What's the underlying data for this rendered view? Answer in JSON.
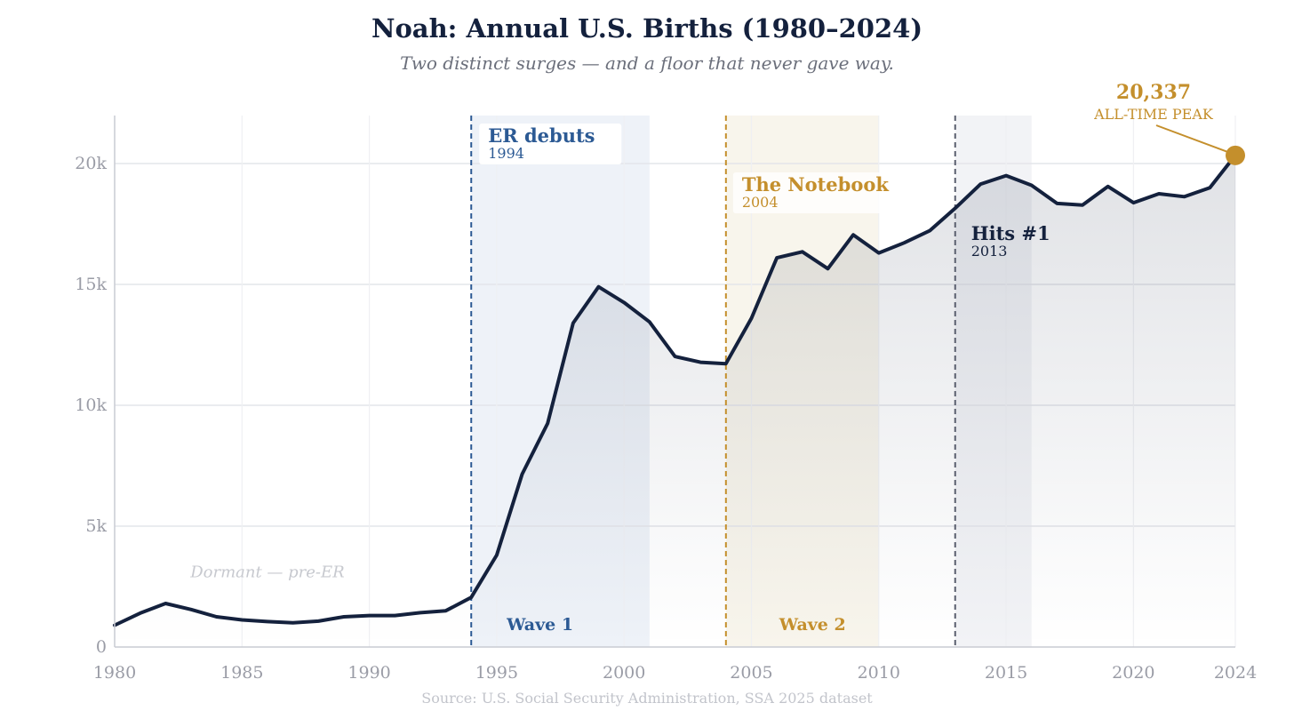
{
  "chart_data": {
    "type": "area",
    "title": "Noah: Annual U.S. Births (1980–2024)",
    "subtitle": "Two distinct surges — and a floor that never gave way.",
    "source": "Source: U.S. Social Security Administration, SSA 2025 dataset",
    "xlabel": "",
    "ylabel": "",
    "xlim": [
      1980,
      2024
    ],
    "ylim": [
      0,
      22000
    ],
    "grid": true,
    "x_ticks": [
      1980,
      1985,
      1990,
      1995,
      2000,
      2005,
      2010,
      2015,
      2020,
      2024
    ],
    "x_tick_labels": [
      "1980",
      "1985",
      "1990",
      "1995",
      "2000",
      "2005",
      "2010",
      "2015",
      "2020",
      "2024"
    ],
    "y_ticks": [
      0,
      5000,
      10000,
      15000,
      20000
    ],
    "y_tick_labels": [
      "0",
      "5k",
      "10k",
      "15k",
      "20k"
    ],
    "series": [
      {
        "name": "Noah births",
        "x": [
          1980,
          1981,
          1982,
          1983,
          1984,
          1985,
          1986,
          1987,
          1988,
          1989,
          1990,
          1991,
          1992,
          1993,
          1994,
          1995,
          1996,
          1997,
          1998,
          1999,
          2000,
          2001,
          2002,
          2003,
          2004,
          2005,
          2006,
          2007,
          2008,
          2009,
          2010,
          2011,
          2012,
          2013,
          2014,
          2015,
          2016,
          2017,
          2018,
          2019,
          2020,
          2021,
          2022,
          2023,
          2024
        ],
        "values": [
          900,
          1400,
          1800,
          1550,
          1250,
          1120,
          1050,
          1000,
          1070,
          1250,
          1300,
          1300,
          1420,
          1500,
          2050,
          3800,
          7150,
          9250,
          13400,
          14900,
          14250,
          13450,
          12020,
          11780,
          11720,
          13600,
          16100,
          16350,
          15650,
          17050,
          16300,
          16720,
          17220,
          18150,
          19150,
          19500,
          19100,
          18350,
          18280,
          19050,
          18380,
          18750,
          18630,
          19000,
          20337
        ]
      }
    ],
    "shaded_regions": [
      {
        "x0": 1994,
        "x1": 2001,
        "color": "#eef2f8"
      },
      {
        "x0": 2004,
        "x1": 2010,
        "color": "#f8f5ec"
      },
      {
        "x0": 2013,
        "x1": 2016,
        "color": "#f2f3f6"
      }
    ],
    "events": [
      {
        "year": 1994,
        "label": "ER debuts",
        "sublabel": "1994",
        "color": "#2c5a94",
        "line_color": "#2c5a94",
        "label_box": true
      },
      {
        "year": 2004,
        "label": "The Notebook",
        "sublabel": "2004",
        "color": "#c48f2c",
        "line_color": "#c48f2c",
        "label_box": true
      },
      {
        "year": 2013,
        "label": "Hits #1",
        "sublabel": "2013",
        "color": "#14213d",
        "line_color": "#5a5f6e",
        "label_box": false
      }
    ],
    "waves": [
      {
        "label": "Wave 1",
        "x": 1996.7,
        "color": "#2c5a94"
      },
      {
        "label": "Wave 2",
        "x": 2007.4,
        "color": "#c48f2c"
      }
    ],
    "dormant_note": {
      "text": "Dormant — pre-ER",
      "x": 1986,
      "y": 3100
    },
    "peak": {
      "year": 2024,
      "value": 20337,
      "value_label": "20,337",
      "label": "ALL-TIME PEAK",
      "color": "#c48f2c"
    },
    "colors": {
      "line": "#14213d",
      "grid": "#e4e5ea",
      "axis": "#c9cbd3",
      "fill": "#14213d"
    }
  }
}
